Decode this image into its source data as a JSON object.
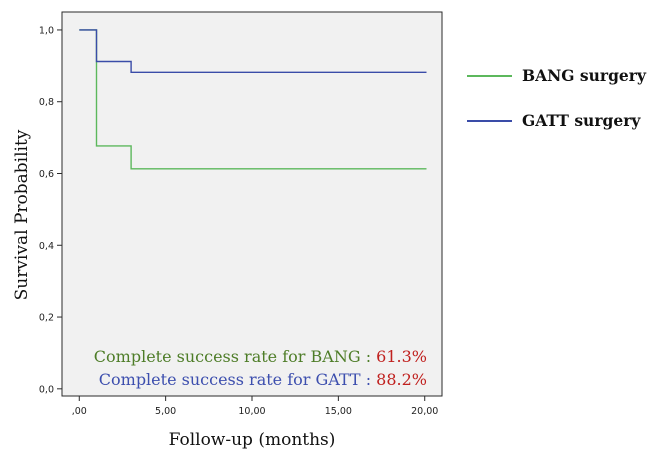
{
  "chart_data": {
    "type": "line",
    "step": true,
    "title": "",
    "xlabel": "Follow-up (months)",
    "ylabel": "Survival Probability",
    "xlim": [
      -1,
      21
    ],
    "ylim": [
      -0.02,
      1.05
    ],
    "xticks": [
      0,
      5,
      10,
      15,
      20
    ],
    "xtick_labels": [
      ",00",
      "5,00",
      "10,00",
      "15,00",
      "20,00"
    ],
    "yticks": [
      0,
      0.2,
      0.4,
      0.6,
      0.8,
      1.0
    ],
    "ytick_labels": [
      "0,0",
      "0,2",
      "0,4",
      "0,6",
      "0,8",
      "1,0"
    ],
    "grid": false,
    "legend_position": "right",
    "plot_background": "#f1f1f1",
    "series": [
      {
        "name": "BANG surgery",
        "color": "#5cb85c",
        "x": [
          0,
          1,
          1,
          3,
          3,
          20.1
        ],
        "y": [
          1.0,
          1.0,
          0.677,
          0.677,
          0.613,
          0.613
        ]
      },
      {
        "name": "GATT surgery",
        "color": "#3a4ca8",
        "x": [
          0,
          1,
          1,
          3,
          3,
          20.1
        ],
        "y": [
          1.0,
          1.0,
          0.912,
          0.912,
          0.882,
          0.882
        ]
      }
    ],
    "annotations": [
      {
        "label": "Complete success rate for BANG",
        "separator": " : ",
        "value": "61.3%",
        "label_color": "#4e7d28",
        "value_color": "#c0201e"
      },
      {
        "label": "Complete success rate for GATT",
        "separator": " : ",
        "value": "88.2%",
        "label_color": "#3d4fae",
        "value_color": "#c0201e"
      }
    ]
  }
}
